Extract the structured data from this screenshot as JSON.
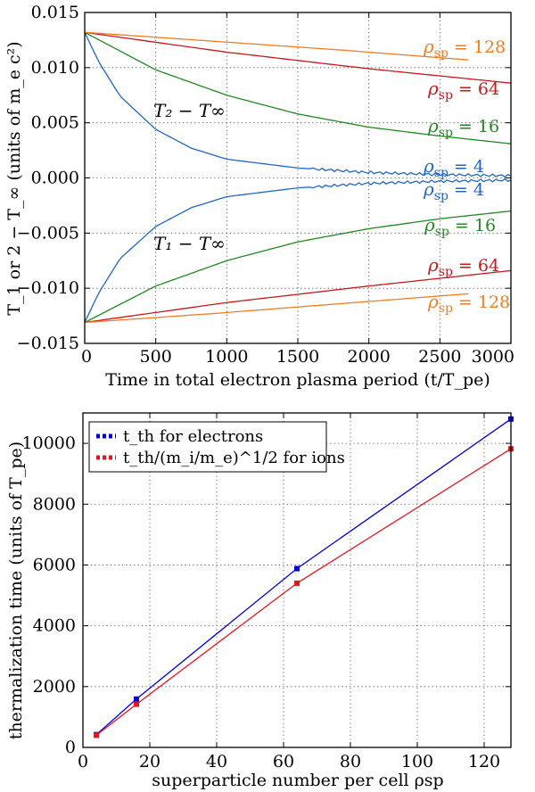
{
  "chart_data": [
    {
      "type": "line",
      "title": "",
      "xlabel": "Time in total electron plasma period (t/T_pe)",
      "ylabel": "T_1 or 2 − T_∞ (units of m_e c²)",
      "xlim": [
        0,
        3000
      ],
      "ylim": [
        -0.015,
        0.015
      ],
      "xticks": [
        "0",
        "500",
        "1000",
        "1500",
        "2000",
        "2500",
        "3000"
      ],
      "yticks": [
        "−0.015",
        "−0.010",
        "−0.005",
        "0.000",
        "0.005",
        "0.010",
        "0.015"
      ],
      "grid": true,
      "annotations": [
        "T₂ − T∞",
        "T₁ − T∞"
      ],
      "series": [
        {
          "name": "T2, ρsp = 4",
          "label_var": "ρ",
          "label_sub": "sp",
          "label_val": "= 4",
          "color": "#1f66c2",
          "t_end": 3000,
          "x": [
            0,
            100,
            250,
            500,
            750,
            1000,
            1500,
            2000,
            2500,
            3000
          ],
          "values": [
            0.0132,
            0.0105,
            0.0074,
            0.0044,
            0.0027,
            0.0017,
            0.0009,
            0.0005,
            0.0003,
            0.0002
          ]
        },
        {
          "name": "T1, ρsp = 4",
          "label_var": "ρ",
          "label_sub": "sp",
          "label_val": "= 4",
          "color": "#1f66c2",
          "t_end": 3000,
          "x": [
            0,
            100,
            250,
            500,
            750,
            1000,
            1500,
            2000,
            2500,
            3000
          ],
          "values": [
            -0.0131,
            -0.0104,
            -0.0073,
            -0.0044,
            -0.0027,
            -0.0017,
            -0.0009,
            -0.0005,
            -0.0003,
            -0.0002
          ]
        },
        {
          "name": "T2, ρsp = 16",
          "label_var": "ρ",
          "label_sub": "sp",
          "label_val": "= 16",
          "color": "#1f8a1f",
          "t_end": 3000,
          "x": [
            0,
            500,
            1000,
            1500,
            2000,
            2500,
            3000
          ],
          "values": [
            0.0132,
            0.0098,
            0.0075,
            0.0058,
            0.0046,
            0.0038,
            0.0031
          ]
        },
        {
          "name": "T1, ρsp = 16",
          "label_var": "ρ",
          "label_sub": "sp",
          "label_val": "= 16",
          "color": "#1f8a1f",
          "t_end": 3000,
          "x": [
            0,
            500,
            1000,
            1500,
            2000,
            2500,
            3000
          ],
          "values": [
            -0.0131,
            -0.0098,
            -0.0075,
            -0.0058,
            -0.0046,
            -0.0037,
            -0.003
          ]
        },
        {
          "name": "T2, ρsp = 64",
          "label_var": "ρ",
          "label_sub": "sp",
          "label_val": "= 64",
          "color": "#c8171c",
          "t_end": 3000,
          "x": [
            0,
            1000,
            2000,
            3000
          ],
          "values": [
            0.0132,
            0.0114,
            0.0099,
            0.0086
          ]
        },
        {
          "name": "T1, ρsp = 64",
          "label_var": "ρ",
          "label_sub": "sp",
          "label_val": "= 64",
          "color": "#c8171c",
          "t_end": 3000,
          "x": [
            0,
            1000,
            2000,
            3000
          ],
          "values": [
            -0.0131,
            -0.0113,
            -0.0098,
            -0.0084
          ]
        },
        {
          "name": "T2, ρsp = 128",
          "label_var": "ρ",
          "label_sub": "sp",
          "label_val": "= 128",
          "color": "#f07d22",
          "t_end": 2700,
          "x": [
            0,
            900,
            1800,
            2700
          ],
          "values": [
            0.0132,
            0.0124,
            0.0116,
            0.0107
          ]
        },
        {
          "name": "T1, ρsp = 128",
          "label_var": "ρ",
          "label_sub": "sp",
          "label_val": "= 128",
          "color": "#f07d22",
          "t_end": 2700,
          "x": [
            0,
            900,
            1800,
            2700
          ],
          "values": [
            -0.0131,
            -0.0123,
            -0.0114,
            -0.0105
          ]
        }
      ]
    },
    {
      "type": "line",
      "title": "",
      "xlabel": "superparticle number per cell ρsp",
      "ylabel": "thermalization time (units of T_pe)",
      "xlim": [
        0,
        128
      ],
      "ylim": [
        0,
        11000
      ],
      "xticks": [
        "0",
        "20",
        "40",
        "60",
        "80",
        "100",
        "120"
      ],
      "yticks": [
        "0",
        "2000",
        "4000",
        "6000",
        "8000",
        "10000"
      ],
      "grid": true,
      "legend_position": "top-left",
      "x": [
        4,
        16,
        64,
        128
      ],
      "series": [
        {
          "name": "t_th for electrons",
          "legend_text": "t_th for electrons",
          "color": "#0000dd",
          "values": [
            420,
            1590,
            5880,
            10800
          ]
        },
        {
          "name": "t_th/(m_i/m_e)^1/2 for ions",
          "legend_text": "t_th/(m_i/m_e)^1/2 for ions",
          "color": "#e8141c",
          "values": [
            400,
            1420,
            5400,
            9820
          ]
        }
      ]
    }
  ]
}
